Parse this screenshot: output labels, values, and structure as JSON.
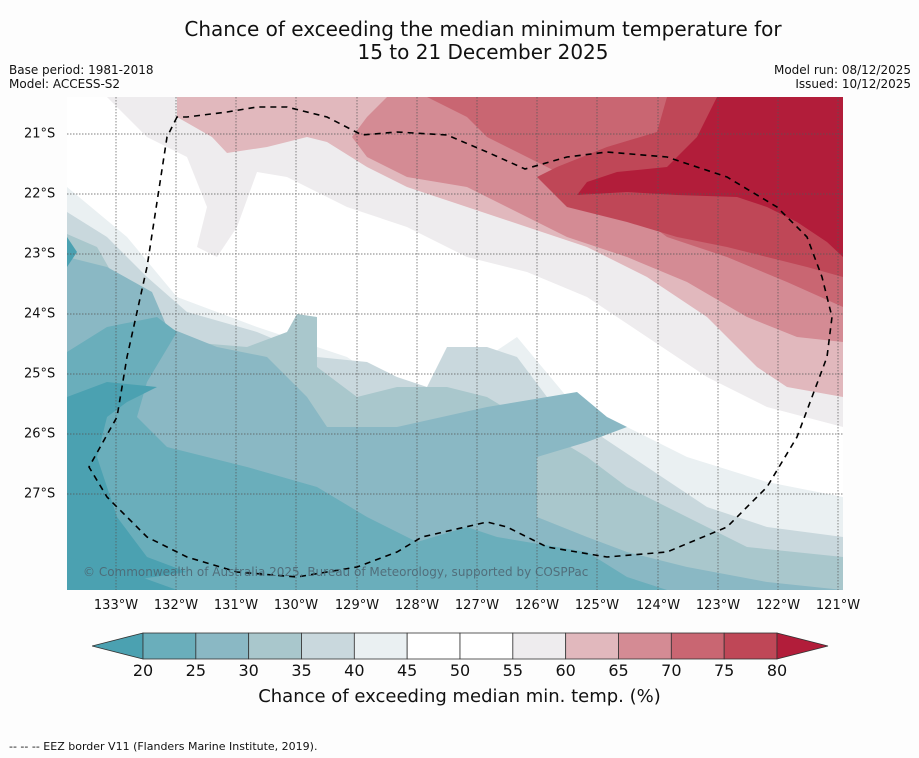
{
  "header": {
    "title_line1": "Chance of exceeding the median minimum temperature for",
    "title_line2": "15 to 21 December 2025",
    "base_period": "Base period: 1981-2018",
    "model": "Model: ACCESS-S2",
    "model_run": "Model run: 08/12/2025",
    "issued": "Issued: 10/12/2025"
  },
  "map": {
    "latitude_labels": [
      "21°S",
      "22°S",
      "23°S",
      "24°S",
      "25°S",
      "26°S",
      "27°S"
    ],
    "longitude_labels": [
      "133°W",
      "132°W",
      "131°W",
      "130°W",
      "129°W",
      "128°W",
      "127°W",
      "126°W",
      "125°W",
      "124°W",
      "123°W",
      "122°W",
      "121°W"
    ],
    "copyright": "© Commonwealth of Australia 2025, Bureau of Meteorology, supported by COSPPac",
    "extent": {
      "lon_min": -133.8,
      "lon_max": -120.9,
      "lat_min": -28.6,
      "lat_max": -20.4
    }
  },
  "colorbar": {
    "ticks": [
      "20",
      "25",
      "30",
      "35",
      "40",
      "45",
      "50",
      "55",
      "60",
      "65",
      "70",
      "75",
      "80"
    ],
    "label": "Chance of exceeding median min. temp. (%)",
    "colors": {
      "below_20": "#4ba1b1",
      "20-25": "#6aaebb",
      "25-30": "#8ab8c4",
      "30-35": "#a9c7cc",
      "35-40": "#c9d8dd",
      "40-45": "#eaf0f2",
      "45-50": "#ffffff",
      "50-55": "#ffffff",
      "55-60": "#eeecee",
      "60-65": "#e1b8bd",
      "65-70": "#d48b94",
      "70-75": "#c96672",
      "75-80": "#bf4757",
      "above_80": "#b21d3a"
    }
  },
  "footnote": "--  --  -- EEZ border V11 (Flanders Marine Institute, 2019)."
}
